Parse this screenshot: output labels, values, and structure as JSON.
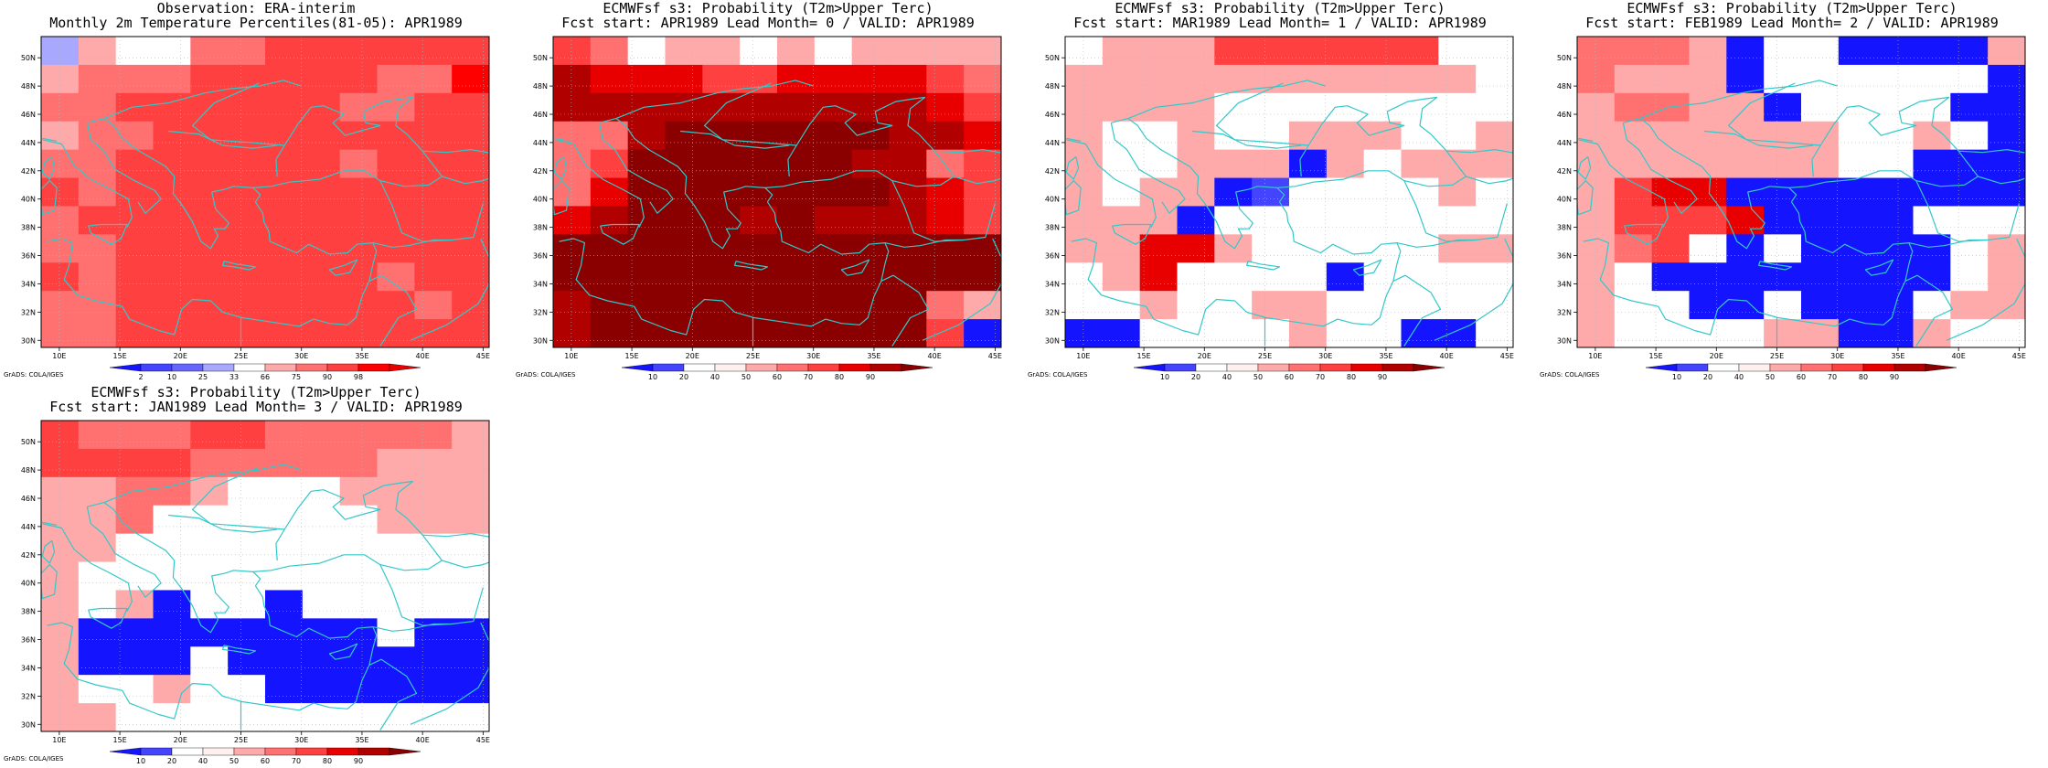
{
  "figure": {
    "credit": "GrADS: COLA/IGES"
  },
  "colors": {
    "coast": "#33c8c8",
    "grid": "#b8b8b8",
    "prob_palette": [
      "#1414ff",
      "#4444ff",
      "#ffffff",
      "#fff0f0",
      "#ffaaaa",
      "#ff7070",
      "#ff4040",
      "#e80000",
      "#b00000",
      "#8a0000"
    ],
    "obs_palette": [
      "#1414ff",
      "#4444ff",
      "#6666ff",
      "#a8a8ff",
      "#ffffff",
      "#ffaaaa",
      "#ff7070",
      "#ff4040",
      "#ff0000",
      "#e80000"
    ]
  },
  "chart_data": [
    {
      "type": "heatmap",
      "id": "obs",
      "title_lines": [
        "Observation: ERA-interim",
        "Monthly 2m Temperature Percentiles(81-05): APR1989"
      ],
      "x_ticks": [
        "10E",
        "15E",
        "20E",
        "25E",
        "30E",
        "35E",
        "40E",
        "45E"
      ],
      "y_ticks": [
        "50N",
        "48N",
        "46N",
        "44N",
        "42N",
        "40N",
        "38N",
        "36N",
        "34N",
        "32N",
        "30N"
      ],
      "xlim": [
        8.5,
        45.5
      ],
      "ylim": [
        29.5,
        51.5
      ],
      "colorbar": {
        "labels": [
          "2",
          "10",
          "25",
          "33",
          "66",
          "75",
          "90",
          "98"
        ],
        "palette": "obs"
      },
      "grid_rows_north_to_south": [
        "354466777777",
        "566677777668",
        "667777776677",
        "566777777777",
        "667777776777",
        "767777777777",
        "677777777777",
        "667777777777",
        "767777777677",
        "667777777767",
        "667777777777"
      ]
    },
    {
      "type": "heatmap",
      "id": "lead0",
      "title_lines": [
        "ECMWFsf s3: Probability (T2m>Upper Terc)",
        "Fcst start: APR1989  Lead Month= 0 / VALID: APR1989"
      ],
      "x_ticks": [
        "10E",
        "15E",
        "20E",
        "25E",
        "30E",
        "35E",
        "40E",
        "45E"
      ],
      "y_ticks": [
        "50N",
        "48N",
        "46N",
        "44N",
        "42N",
        "40N",
        "38N",
        "36N",
        "34N",
        "32N",
        "30N"
      ],
      "xlim": [
        8.5,
        45.5
      ],
      "ylim": [
        29.5,
        51.5
      ],
      "colorbar": {
        "labels": [
          "10",
          "20",
          "40",
          "50",
          "60",
          "70",
          "80",
          "90"
        ],
        "palette": "prob"
      },
      "grid_rows_north_to_south": [
        "652442424444",
        "877766777765",
        "888888888876",
        "558999999887",
        "569999998856",
        "579999999876",
        "789998988876",
        "999999999999",
        "999999999999",
        "899999999954",
        "899999999960"
      ]
    },
    {
      "type": "heatmap",
      "id": "lead1",
      "title_lines": [
        "ECMWFsf s3: Probability (T2m>Upper Terc)",
        "Fcst start: MAR1989  Lead Month= 1 / VALID: APR1989"
      ],
      "x_ticks": [
        "10E",
        "15E",
        "20E",
        "25E",
        "30E",
        "35E",
        "40E",
        "45E"
      ],
      "y_ticks": [
        "50N",
        "48N",
        "46N",
        "44N",
        "42N",
        "40N",
        "38N",
        "36N",
        "34N",
        "32N",
        "30N"
      ],
      "xlim": [
        8.5,
        45.5
      ],
      "ylim": [
        29.5,
        51.5
      ],
      "colorbar": {
        "labels": [
          "10",
          "20",
          "40",
          "50",
          "60",
          "70",
          "80",
          "90"
        ],
        "palette": "prob"
      },
      "grid_rows_north_to_south": [
        "244466666622",
        "444444444442",
        "444422222222",
        "422422444224",
        "422444042444",
        "424401222242",
        "444022222222",
        "447742222244",
        "247222202222",
        "224224422222",
        "002222422002"
      ]
    },
    {
      "type": "heatmap",
      "id": "lead2",
      "title_lines": [
        "ECMWFsf s3: Probability (T2m>Upper Terc)",
        "Fcst start: FEB1989  Lead Month= 2 / VALID: APR1989"
      ],
      "x_ticks": [
        "10E",
        "15E",
        "20E",
        "25E",
        "30E",
        "35E",
        "40E",
        "45E"
      ],
      "y_ticks": [
        "50N",
        "48N",
        "46N",
        "44N",
        "42N",
        "40N",
        "38N",
        "36N",
        "34N",
        "32N",
        "30N"
      ],
      "xlim": [
        8.5,
        45.5
      ],
      "ylim": [
        29.5,
        51.5
      ],
      "colorbar": {
        "labels": [
          "10",
          "20",
          "40",
          "50",
          "60",
          "70",
          "80",
          "90"
        ],
        "palette": "prob"
      },
      "grid_rows_north_to_south": [
        "555402200004",
        "544402222220",
        "455440222200",
        "444444422420",
        "444444422000",
        "467700000000",
        "466670000222",
        "456202000024",
        "420000000024",
        "422002000244",
        "422224400422"
      ]
    },
    {
      "type": "heatmap",
      "id": "lead3",
      "title_lines": [
        "ECMWFsf s3: Probability (T2m>Upper Terc)",
        "Fcst start: JAN1989  Lead Month= 3 / VALID: APR1989"
      ],
      "x_ticks": [
        "10E",
        "15E",
        "20E",
        "25E",
        "30E",
        "35E",
        "40E",
        "45E"
      ],
      "y_ticks": [
        "50N",
        "48N",
        "46N",
        "44N",
        "42N",
        "40N",
        "38N",
        "36N",
        "34N",
        "32N",
        "30N"
      ],
      "xlim": [
        8.5,
        45.5
      ],
      "ylim": [
        29.5,
        51.5
      ],
      "colorbar": {
        "labels": [
          "10",
          "20",
          "40",
          "50",
          "60",
          "70",
          "80",
          "90"
        ],
        "palette": "prob"
      },
      "grid_rows_north_to_south": [
        "655566555554",
        "666655555444",
        "445542224444",
        "445222222444",
        "442222222222",
        "422222222222",
        "424022022222",
        "400000000200",
        "400020000000",
        "422422000000",
        "442222222222"
      ]
    }
  ]
}
